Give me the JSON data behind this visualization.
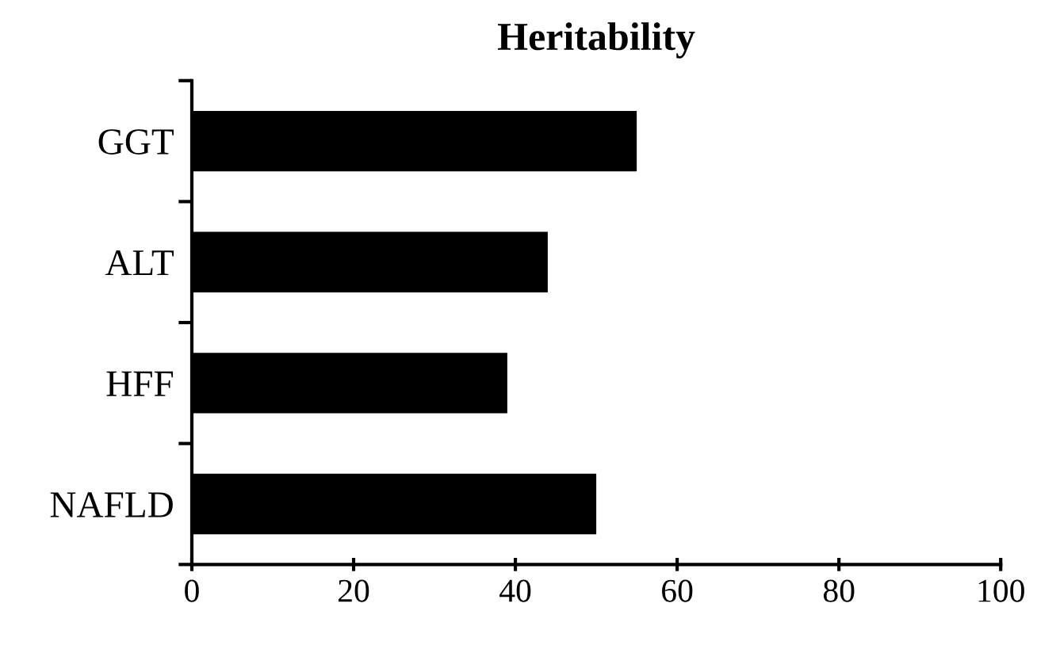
{
  "chart_data": {
    "type": "bar",
    "orientation": "horizontal",
    "title": "Heritability",
    "categories": [
      "GGT",
      "ALT",
      "HFF",
      "NAFLD"
    ],
    "values": [
      55,
      44,
      39,
      50
    ],
    "color": "#000000",
    "xlim": [
      0,
      100
    ],
    "xticks": [
      0,
      20,
      40,
      60,
      80,
      100
    ],
    "grid": false,
    "legend": false
  }
}
